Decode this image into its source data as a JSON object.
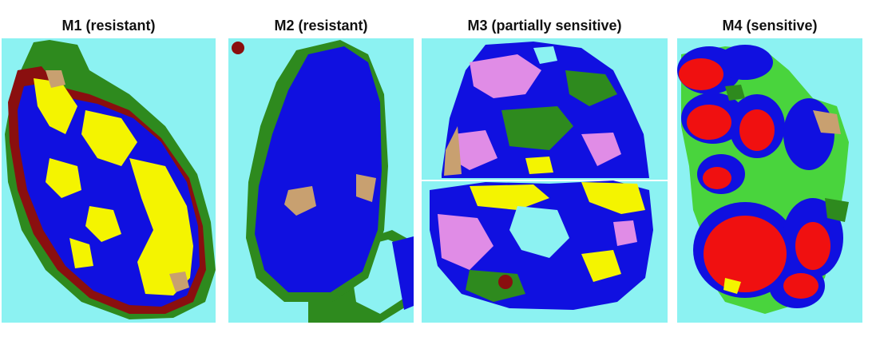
{
  "panels": [
    {
      "title": "M1 (resistant)"
    },
    {
      "title": "M2 (resistant)"
    },
    {
      "title": "M3 (partially sensitive)"
    },
    {
      "title": "M4 (sensitive)"
    }
  ],
  "colors": {
    "background": "#8cf2f2",
    "blue": "#1010e0",
    "yellow": "#f4f400",
    "green": "#2e8a1e",
    "dark_red": "#8a0f0f",
    "red": "#f01010",
    "pink": "#e08ce6",
    "tan": "#c8a070",
    "light_green": "#49d43d"
  }
}
